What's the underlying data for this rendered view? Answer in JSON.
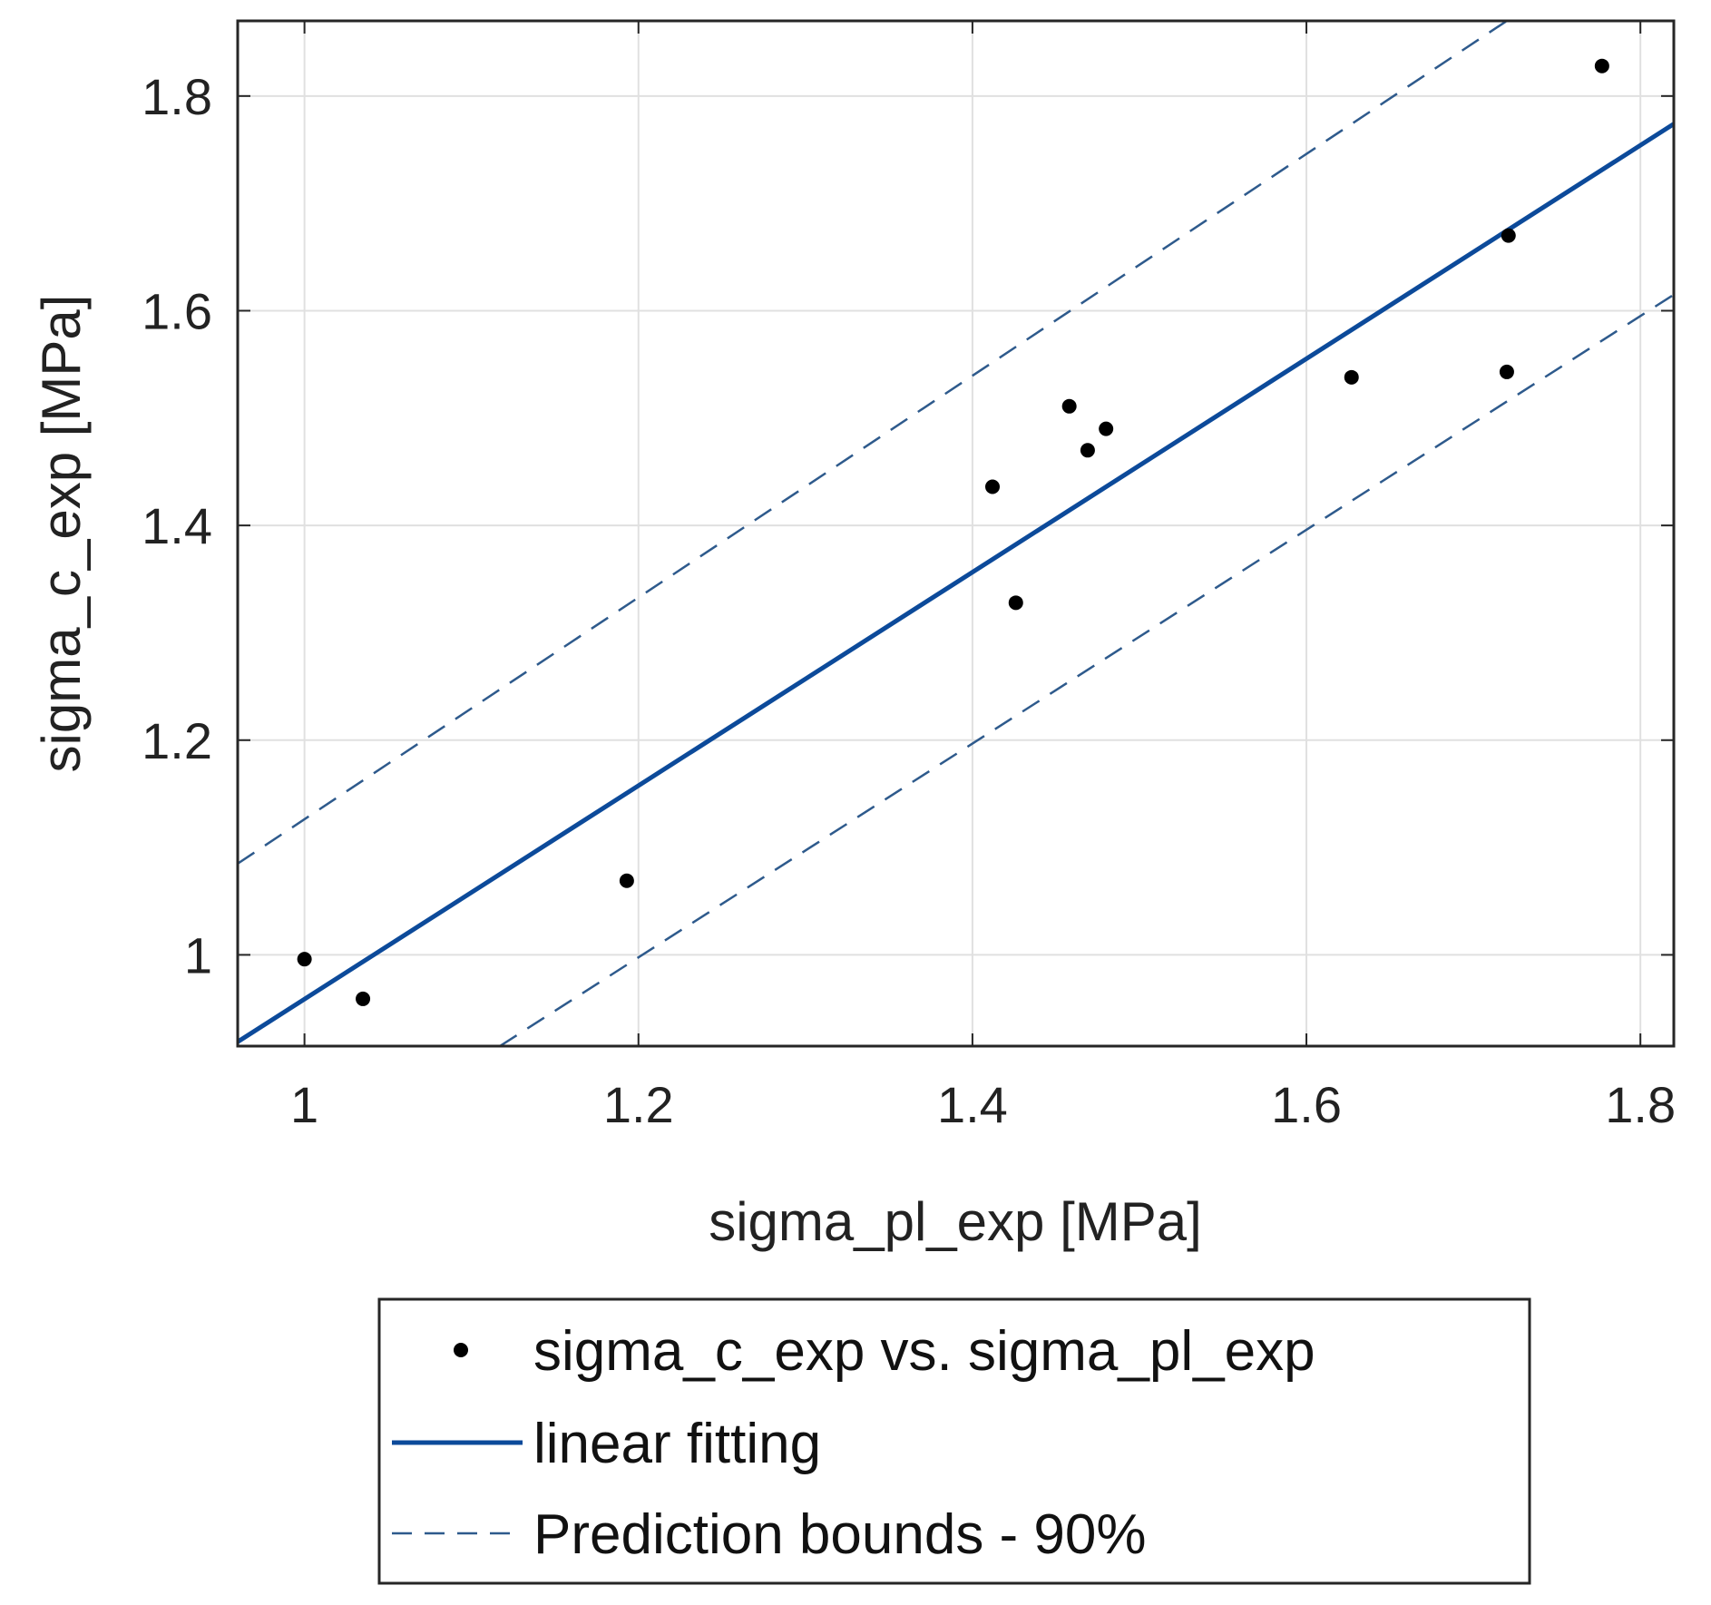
{
  "chart_data": {
    "type": "scatter",
    "title": "",
    "xlabel": "sigma_pl_exp [MPa]",
    "ylabel": "sigma_c_exp [MPa]",
    "xlim": [
      0.96,
      1.82
    ],
    "ylim": [
      0.915,
      1.87
    ],
    "xticks": [
      1,
      1.2,
      1.4,
      1.6,
      1.8
    ],
    "xtick_labels": [
      "1",
      "1.2",
      "1.4",
      "1.6",
      "1.8"
    ],
    "yticks": [
      1,
      1.2,
      1.4,
      1.6,
      1.8
    ],
    "ytick_labels": [
      "1",
      "1.2",
      "1.4",
      "1.6",
      "1.8"
    ],
    "grid": true,
    "legend_position": "below",
    "colors": {
      "fit": "#0c4a9a",
      "bounds": "#2e5a8c",
      "points": "#000000",
      "grid": "#e0e0e0",
      "axes": "#262626"
    },
    "series": [
      {
        "name": "sigma_c_exp vs. sigma_pl_exp",
        "kind": "scatter",
        "x": [
          1.0,
          1.035,
          1.193,
          1.412,
          1.426,
          1.458,
          1.469,
          1.48,
          1.627,
          1.72,
          1.721,
          1.777
        ],
        "y": [
          0.996,
          0.959,
          1.069,
          1.436,
          1.328,
          1.511,
          1.47,
          1.49,
          1.538,
          1.543,
          1.67,
          1.828
        ]
      },
      {
        "name": "linear fitting",
        "kind": "line",
        "style": "solid",
        "x": [
          0.96,
          1.82
        ],
        "y": [
          0.919,
          1.774
        ]
      },
      {
        "name": "Prediction bounds - 90%",
        "kind": "line",
        "style": "dashed",
        "x": [
          0.96,
          1.72
        ],
        "y": [
          1.085,
          1.87
        ]
      },
      {
        "name": "",
        "kind": "line",
        "style": "dashed",
        "x": [
          1.117,
          1.82
        ],
        "y": [
          0.915,
          1.615
        ]
      }
    ]
  }
}
